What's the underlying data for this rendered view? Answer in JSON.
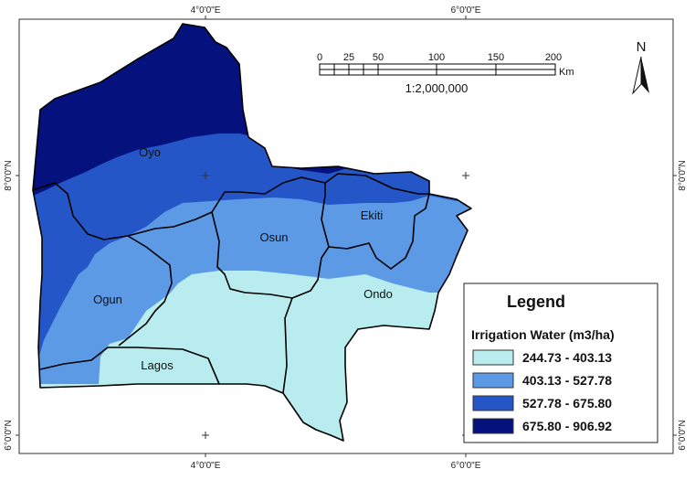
{
  "coordinates": {
    "top_left": "4°0'0\"E",
    "top_right": "6°0'0\"E",
    "bottom_left": "4°0'0\"E",
    "bottom_right": "6°0'0\"E",
    "left_upper": "8°0'0\"N",
    "left_lower": "6°0'0\"N",
    "right_upper": "8°0'0\"N",
    "right_lower": "6°0'0\"N"
  },
  "states": {
    "oyo": "Oyo",
    "osun": "Osun",
    "ekiti": "Ekiti",
    "ogun": "Ogun",
    "ondo": "Ondo",
    "lagos": "Lagos"
  },
  "scale_bar": {
    "ticks": [
      "0",
      "25",
      "50",
      "100",
      "150",
      "200"
    ],
    "unit": "Km",
    "ratio": "1:2,000,000"
  },
  "north_arrow": {
    "label": "N"
  },
  "legend": {
    "title": "Legend",
    "subtitle": "Irrigation Water (m3/ha)",
    "classes": [
      {
        "label": "244.73 - 403.13",
        "color": "#b8ecee"
      },
      {
        "label": "403.13 - 527.78",
        "color": "#5c9ae6"
      },
      {
        "label": "527.78 - 675.80",
        "color": "#2456c8"
      },
      {
        "label": "675.80 - 906.92",
        "color": "#05127e"
      }
    ]
  }
}
